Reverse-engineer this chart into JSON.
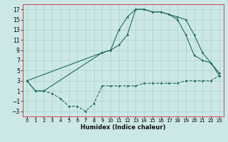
{
  "xlabel": "Humidex (Indice chaleur)",
  "bg_color": "#cce8e6",
  "grid_color": "#aacfcd",
  "line_color": "#1e6b60",
  "spine_color": "#cc4444",
  "xlim": [
    -0.5,
    23.5
  ],
  "ylim": [
    -4,
    18
  ],
  "xticks": [
    0,
    1,
    2,
    3,
    4,
    5,
    6,
    7,
    8,
    9,
    10,
    11,
    12,
    13,
    14,
    15,
    16,
    17,
    18,
    19,
    20,
    21,
    22,
    23
  ],
  "yticks": [
    -3,
    -1,
    1,
    3,
    5,
    7,
    9,
    11,
    13,
    15,
    17
  ],
  "line1_x": [
    0,
    1,
    2,
    3,
    4,
    5,
    6,
    7,
    8,
    9,
    10,
    11,
    12,
    13,
    14,
    15,
    16,
    17,
    18,
    19,
    20,
    21,
    22,
    23
  ],
  "line1_y": [
    3,
    1,
    1,
    0.5,
    -0.5,
    -2,
    -2,
    -3,
    -1.5,
    2,
    2,
    2,
    2,
    2,
    2.5,
    2.5,
    2.5,
    2.5,
    2.5,
    3,
    3,
    3,
    3,
    4
  ],
  "line2_x": [
    0,
    1,
    2,
    9,
    10,
    11,
    12,
    13,
    14,
    15,
    16,
    17,
    18,
    19,
    20,
    21,
    22,
    23
  ],
  "line2_y": [
    3,
    1,
    1,
    8.5,
    9,
    13,
    15.5,
    17,
    17,
    16.5,
    16.5,
    16,
    15,
    12,
    8,
    7,
    6.5,
    4
  ],
  "line3_x": [
    0,
    9,
    10,
    11,
    12,
    13,
    14,
    15,
    16,
    17,
    18,
    19,
    20,
    21,
    22,
    23
  ],
  "line3_y": [
    3,
    8.5,
    9,
    10,
    12,
    17,
    17,
    16.5,
    16.5,
    16,
    15.5,
    15,
    12,
    8.5,
    6.5,
    4.5
  ],
  "xlabel_fontsize": 6.0,
  "tick_fontsize": 5.0,
  "ytick_fontsize": 5.5,
  "lw": 0.8,
  "ms": 1.8
}
